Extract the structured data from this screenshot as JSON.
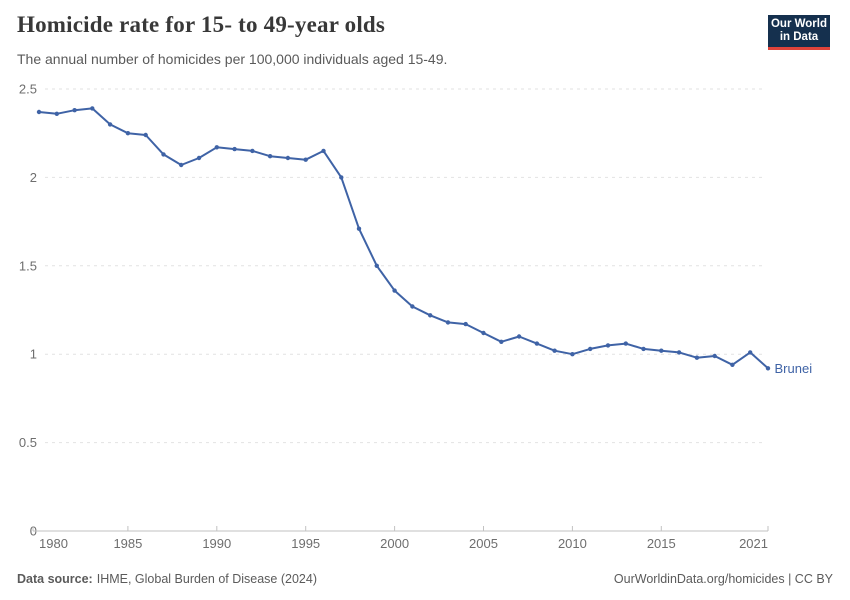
{
  "header": {
    "title": "Homicide rate for 15- to 49-year olds",
    "subtitle": "The annual number of homicides per 100,000 individuals aged 15-49.",
    "logo": {
      "line1": "Our World",
      "line2": "in Data",
      "bg_color": "#15304e",
      "accent_color": "#e0433a"
    }
  },
  "chart_data": {
    "type": "line",
    "title": "Homicide rate for 15- to 49-year olds",
    "xlabel": "",
    "ylabel": "",
    "xlim": [
      1980,
      2021
    ],
    "ylim": [
      0,
      2.5
    ],
    "grid": true,
    "legend_position": "end-of-line-label",
    "x_ticks": [
      1980,
      1985,
      1990,
      1995,
      2000,
      2005,
      2010,
      2015,
      2021
    ],
    "y_ticks": [
      0,
      0.5,
      1,
      1.5,
      2,
      2.5
    ],
    "y_tick_labels": [
      "0",
      "0.5",
      "1",
      "1.5",
      "2",
      "2.5"
    ],
    "series": [
      {
        "name": "Brunei",
        "color": "#3f63a6",
        "x": [
          1980,
          1981,
          1982,
          1983,
          1984,
          1985,
          1986,
          1987,
          1988,
          1989,
          1990,
          1991,
          1992,
          1993,
          1994,
          1995,
          1996,
          1997,
          1998,
          1999,
          2000,
          2001,
          2002,
          2003,
          2004,
          2005,
          2006,
          2007,
          2008,
          2009,
          2010,
          2011,
          2012,
          2013,
          2014,
          2015,
          2016,
          2017,
          2018,
          2019,
          2020,
          2021
        ],
        "values": [
          2.37,
          2.36,
          2.38,
          2.39,
          2.3,
          2.25,
          2.24,
          2.13,
          2.07,
          2.11,
          2.17,
          2.16,
          2.15,
          2.12,
          2.11,
          2.1,
          2.15,
          2.0,
          1.71,
          1.5,
          1.36,
          1.27,
          1.22,
          1.18,
          1.17,
          1.12,
          1.07,
          1.1,
          1.06,
          1.02,
          1.0,
          1.03,
          1.05,
          1.06,
          1.03,
          1.02,
          1.01,
          0.98,
          0.99,
          0.94,
          1.01,
          0.92
        ]
      }
    ]
  },
  "footer": {
    "source_label": "Data source:",
    "source_text": "IHME, Global Burden of Disease (2024)",
    "right_text": "OurWorldinData.org/homicides | CC BY"
  }
}
